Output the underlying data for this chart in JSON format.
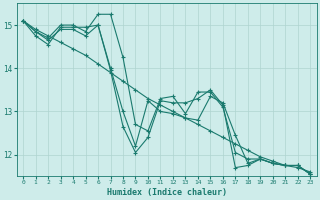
{
  "xlabel": "Humidex (Indice chaleur)",
  "bg_color": "#ceecea",
  "line_color": "#1a7a6e",
  "grid_color": "#afd4d0",
  "xlim": [
    -0.5,
    23.5
  ],
  "ylim": [
    11.5,
    15.5
  ],
  "yticks": [
    12,
    13,
    14,
    15
  ],
  "xticks": [
    0,
    1,
    2,
    3,
    4,
    5,
    6,
    7,
    8,
    9,
    10,
    11,
    12,
    13,
    14,
    15,
    16,
    17,
    18,
    19,
    20,
    21,
    22,
    23
  ],
  "series": [
    {
      "x": [
        0,
        1,
        2,
        3,
        4,
        5,
        6,
        7,
        8,
        9,
        10,
        11,
        12,
        13,
        14,
        15,
        16,
        17,
        18,
        19,
        20,
        21,
        22,
        23
      ],
      "y": [
        15.1,
        14.9,
        14.75,
        14.6,
        14.45,
        14.3,
        14.1,
        13.9,
        13.7,
        13.5,
        13.3,
        13.15,
        13.0,
        12.85,
        12.7,
        12.55,
        12.4,
        12.25,
        12.1,
        11.95,
        11.85,
        11.75,
        11.7,
        11.6
      ]
    },
    {
      "x": [
        0,
        1,
        2,
        3,
        4,
        5,
        6,
        7,
        8,
        9,
        10,
        11,
        12,
        13,
        14,
        15,
        16,
        17,
        18,
        19,
        20,
        21,
        22,
        23
      ],
      "y": [
        15.1,
        14.85,
        14.7,
        15.0,
        15.0,
        14.85,
        15.25,
        15.25,
        14.25,
        12.7,
        12.55,
        13.3,
        13.35,
        12.95,
        13.45,
        13.45,
        13.1,
        12.05,
        11.9,
        11.9,
        11.8,
        11.75,
        11.75,
        11.55
      ]
    },
    {
      "x": [
        0,
        1,
        2,
        3,
        4,
        5,
        6,
        7,
        8,
        9,
        10,
        11,
        12,
        13,
        14,
        15,
        16,
        17,
        18,
        19,
        20,
        21,
        22,
        23
      ],
      "y": [
        15.1,
        14.75,
        14.55,
        14.95,
        14.95,
        14.95,
        15.0,
        13.95,
        12.65,
        12.05,
        12.4,
        13.25,
        13.2,
        13.2,
        13.3,
        13.5,
        13.15,
        11.7,
        11.75,
        11.9,
        11.8,
        11.75,
        11.75,
        11.55
      ]
    },
    {
      "x": [
        0,
        1,
        2,
        3,
        4,
        5,
        6,
        7,
        8,
        9,
        10,
        11,
        12,
        13,
        14,
        15,
        16,
        17,
        18,
        19,
        20,
        21,
        22,
        23
      ],
      "y": [
        15.1,
        14.85,
        14.65,
        14.9,
        14.9,
        14.75,
        15.0,
        14.0,
        13.0,
        12.2,
        13.25,
        13.0,
        12.95,
        12.85,
        12.8,
        13.35,
        13.2,
        12.45,
        11.8,
        11.9,
        11.8,
        11.75,
        11.75,
        11.55
      ]
    }
  ]
}
